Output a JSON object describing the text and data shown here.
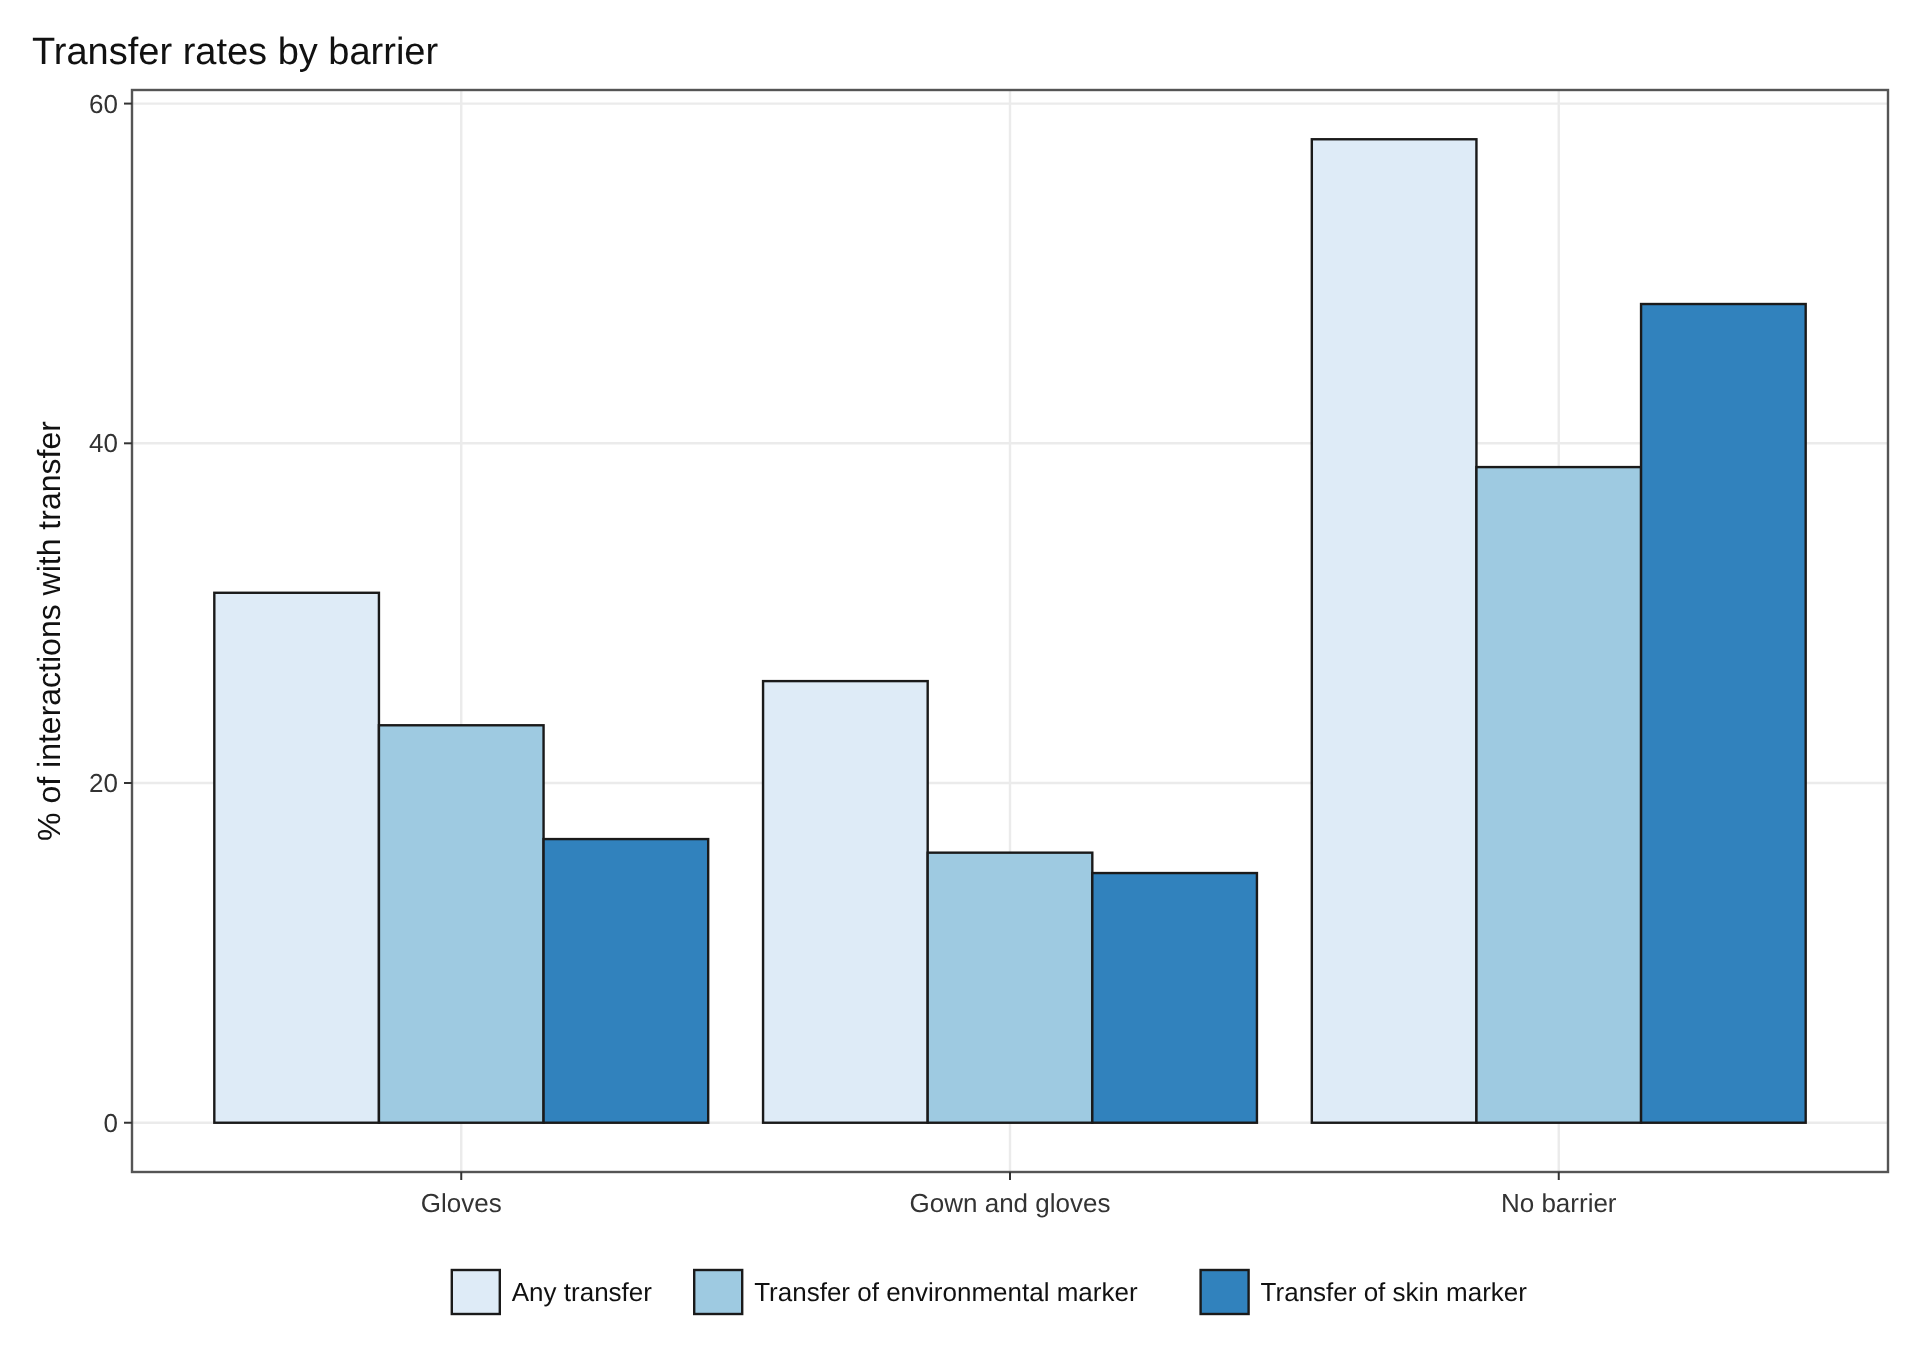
{
  "chart_data": {
    "type": "bar",
    "title": "Transfer rates by barrier",
    "ylabel": "% of interactions with transfer",
    "categories": [
      "Gloves",
      "Gown and gloves",
      "No barrier"
    ],
    "series": [
      {
        "name": "Any transfer",
        "color": "#deebf7",
        "values": [
          31.2,
          26.0,
          57.9
        ]
      },
      {
        "name": "Transfer of environmental marker",
        "color": "#9ecae1",
        "values": [
          23.4,
          15.9,
          38.6
        ]
      },
      {
        "name": "Transfer of skin marker",
        "color": "#3182bd",
        "values": [
          16.7,
          14.7,
          48.2
        ]
      }
    ],
    "ylim": [
      -2.9,
      60.8
    ],
    "yticks": [
      0,
      20,
      40,
      60
    ],
    "grid": true,
    "legend": "bottom"
  }
}
